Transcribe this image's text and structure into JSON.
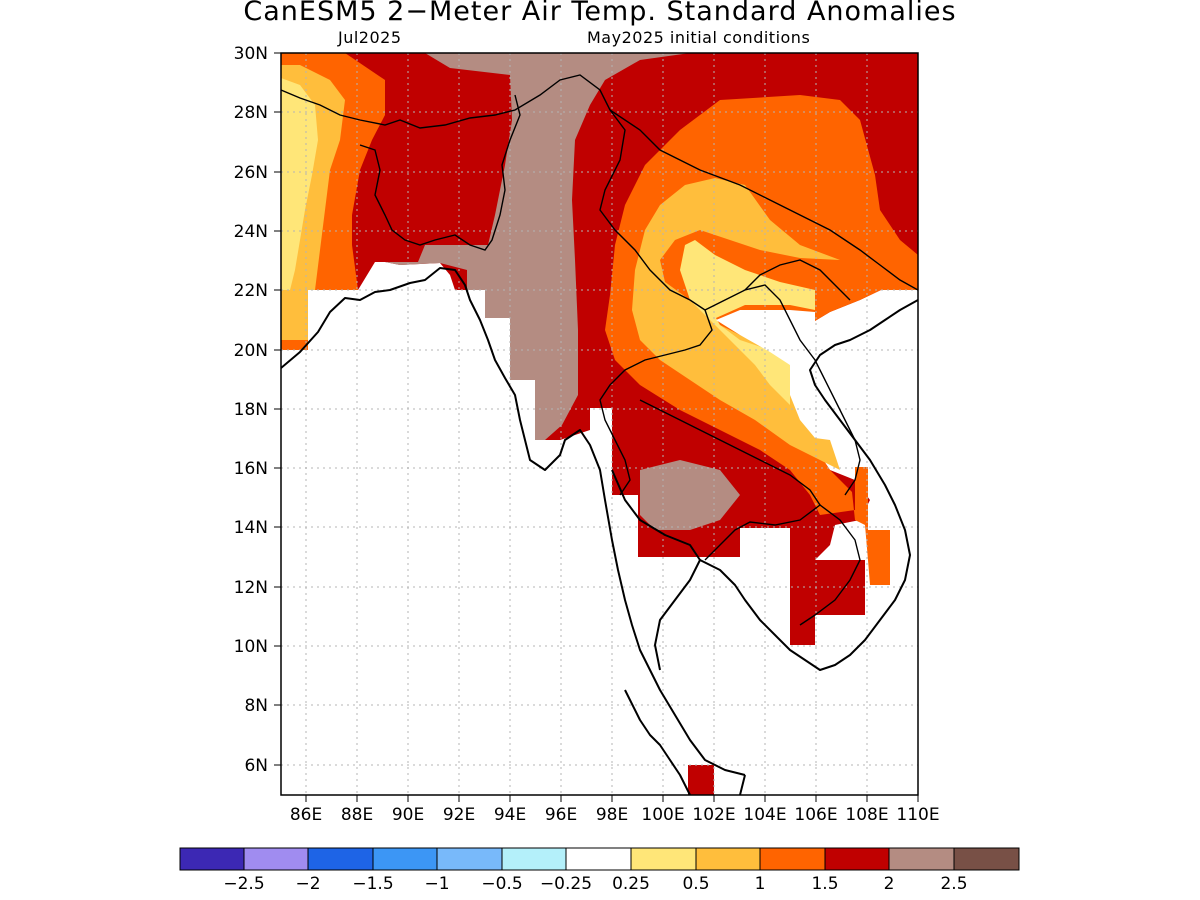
{
  "title": "CanESM5 2−Meter Air Temp. Standard Anomalies",
  "subtitle_left": "Jul2025",
  "subtitle_right": "May2025 initial conditions",
  "lat_labels": [
    "30N",
    "28N",
    "26N",
    "24N",
    "22N",
    "20N",
    "18N",
    "16N",
    "14N",
    "12N",
    "10N",
    "8N",
    "6N"
  ],
  "lon_labels": [
    "86E",
    "88E",
    "90E",
    "92E",
    "94E",
    "96E",
    "98E",
    "100E",
    "102E",
    "104E",
    "106E",
    "108E",
    "110E"
  ],
  "colorbar": {
    "colors": [
      "#3c28b4",
      "#a08cf0",
      "#1e64e6",
      "#3c96f5",
      "#78b9fa",
      "#b4f0fa",
      "#ffffff",
      "#ffe678",
      "#ffbe3c",
      "#ff6400",
      "#c00000",
      "#b48c82",
      "#785046"
    ],
    "labels": [
      "−2.5",
      "−2",
      "−1.5",
      "−1",
      "−0.5",
      "−0.25",
      "0.25",
      "0.5",
      "1",
      "1.5",
      "2",
      "2.5"
    ]
  },
  "map_colors": {
    "c0_25": "#ffe678",
    "c0_5": "#ffbe3c",
    "c1": "#ff6400",
    "c1_5": "#c00000",
    "c2": "#b48c82"
  }
}
